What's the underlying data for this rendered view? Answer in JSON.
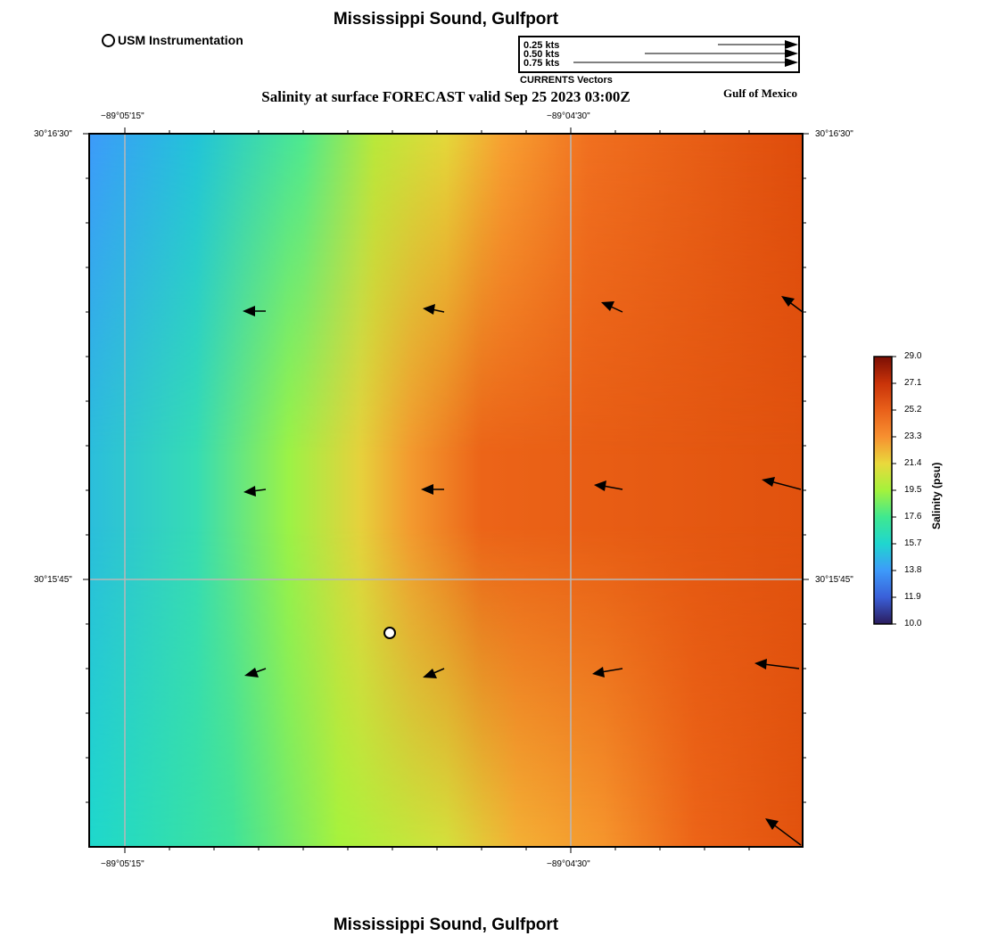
{
  "map": {
    "title_top": "Mississippi Sound, Gulfport",
    "title_bottom": "Mississippi Sound, Gulfport",
    "subtitle": "Salinity at surface FORECAST valid Sep 25 2023 03:00Z",
    "region_label": "Gulf of Mexico",
    "instrument_label": "USM Instrumentation",
    "lon_labels": [
      "−89°05'15\"",
      "−89°04'30\""
    ],
    "lat_labels": [
      "30°16'30\"",
      "30°15'45\""
    ]
  },
  "vector_legend": {
    "labels": [
      "0.25 kts",
      "0.50 kts",
      "0.75 kts"
    ],
    "caption": "CURRENTS Vectors"
  },
  "colorbar": {
    "title": "Salinity (psu)",
    "ticks": [
      "29.0",
      "27.1",
      "25.2",
      "23.3",
      "21.4",
      "19.5",
      "17.6",
      "15.7",
      "13.8",
      "11.9",
      "10.0"
    ]
  },
  "colors": {
    "low": "#3d9afa",
    "mid_cyan": "#1fd6cf",
    "mid_green": "#a4f23c",
    "mid_yellow": "#e9d93c",
    "high_orange": "#f79030",
    "high_red": "#e1520e"
  }
}
